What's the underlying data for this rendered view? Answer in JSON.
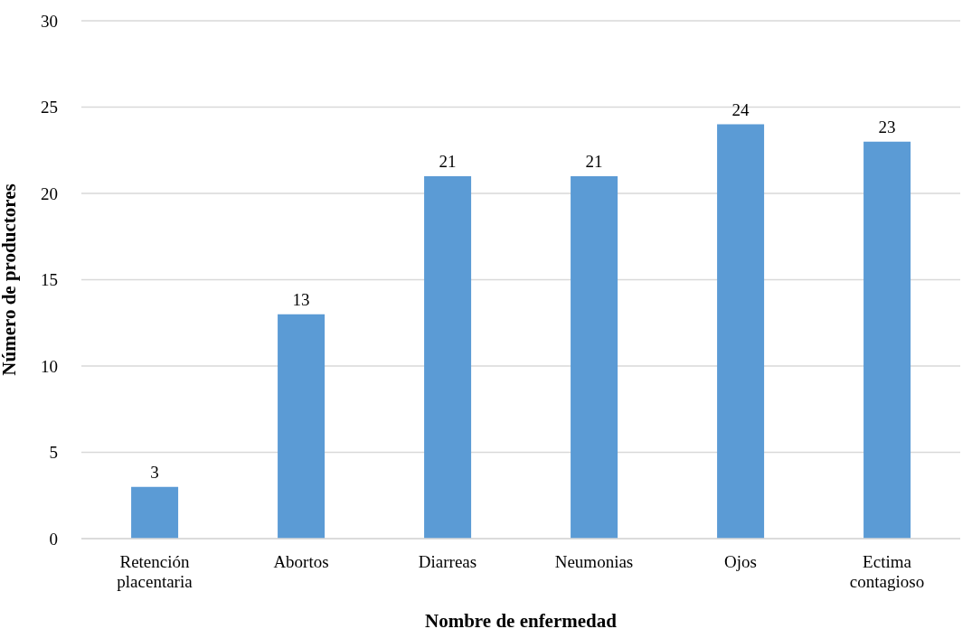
{
  "chart_data": {
    "type": "bar",
    "xlabel": "Nombre de enfermedad",
    "ylabel": "Número de productores",
    "categories": [
      "Retención placentaria",
      "Abortos",
      "Diarreas",
      "Neumonias",
      "Ojos",
      "Ectima contagioso"
    ],
    "values": [
      3,
      13,
      21,
      21,
      24,
      23
    ],
    "color": "#5b9bd5",
    "ylim": [
      0,
      30
    ],
    "yticks": [
      0,
      5,
      10,
      15,
      20,
      25,
      30
    ],
    "grid": "y",
    "data_labels": true
  }
}
